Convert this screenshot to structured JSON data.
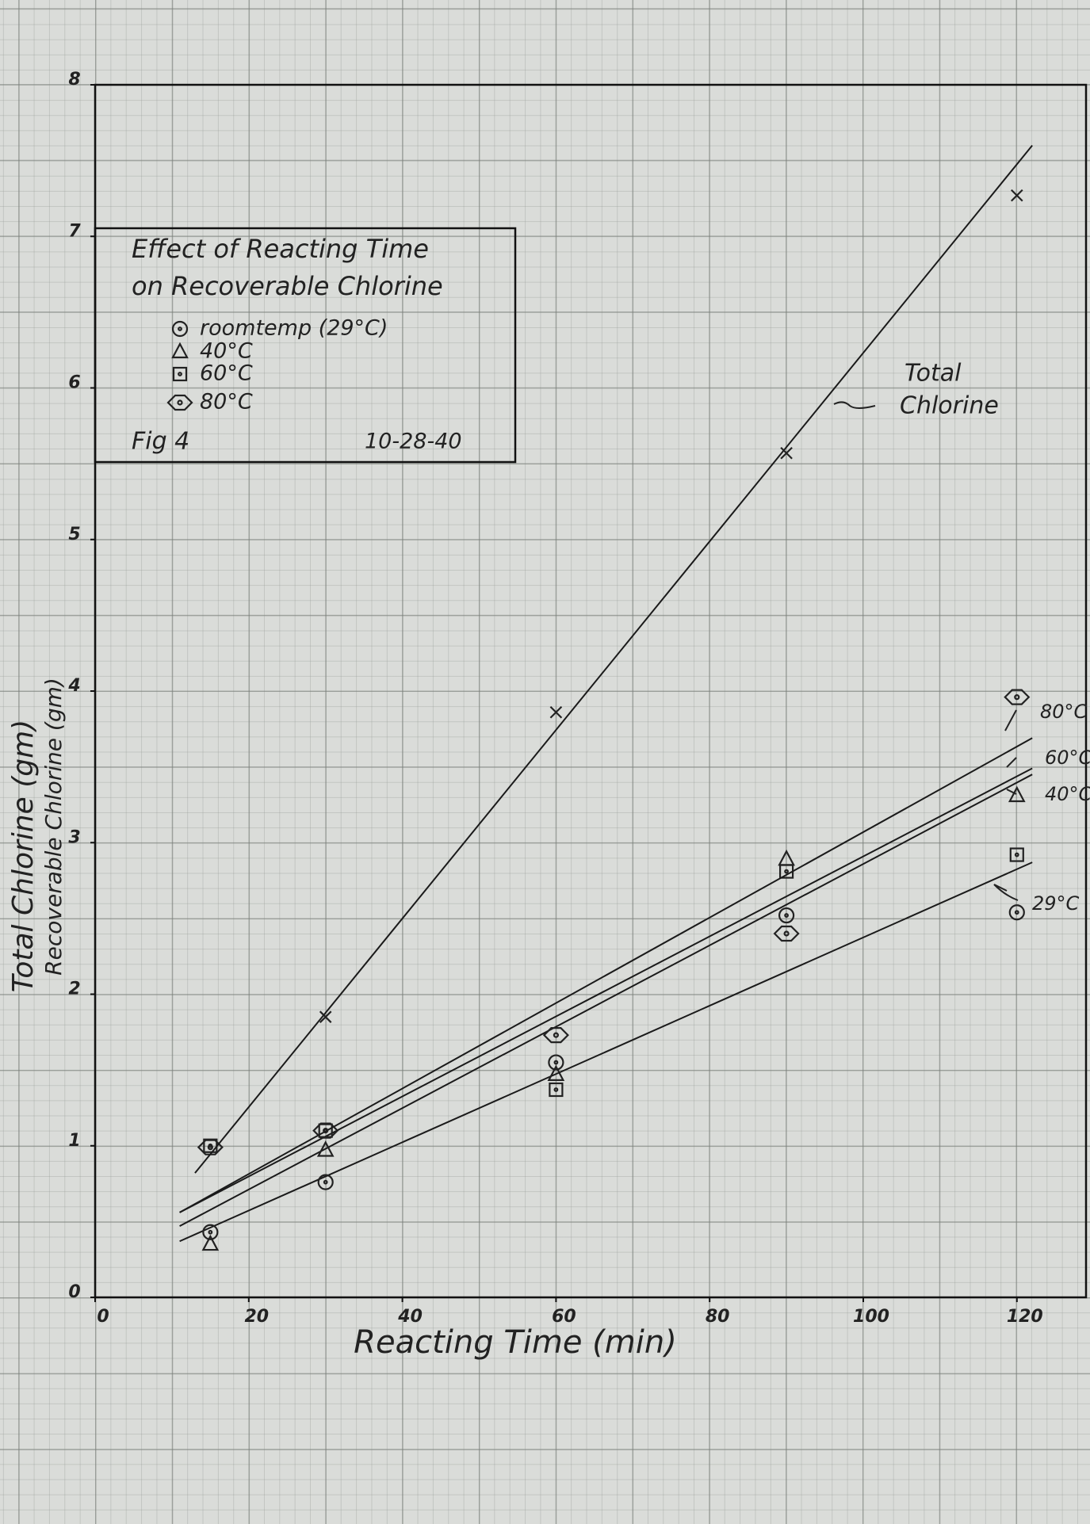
{
  "chart_data": {
    "type": "scatter",
    "title_lines": [
      "Effect of Reacting Time",
      "on Recoverable Chlorine"
    ],
    "figure_label": "Fig 4",
    "date": "10-28-40",
    "x_label": "Reacting Time (min)",
    "y_labels": [
      "Total Chlorine (gm)",
      "Recoverable Chlorine (gm)"
    ],
    "xlim": [
      0,
      129
    ],
    "ylim": [
      0,
      8
    ],
    "xticks": [
      0,
      20,
      40,
      60,
      80,
      100,
      120
    ],
    "yticks": [
      0,
      1,
      2,
      3,
      4,
      5,
      6,
      7,
      8
    ],
    "legend": "upper left",
    "series": [
      {
        "name": "roomtemp (29°C)",
        "marker": "circle",
        "x": [
          15,
          30,
          60,
          90,
          120
        ],
        "values": [
          0.43,
          0.76,
          1.55,
          2.52,
          2.54
        ],
        "fit": {
          "label": "29°C",
          "x": [
            11,
            122
          ],
          "values": [
            0.37,
            2.87
          ]
        }
      },
      {
        "name": "40°C",
        "marker": "triangle",
        "x": [
          15,
          30,
          60,
          90,
          120
        ],
        "values": [
          0.35,
          0.97,
          1.47,
          2.89,
          3.31
        ],
        "fit": {
          "label": "40°C",
          "x": [
            11,
            122
          ],
          "values": [
            0.47,
            3.45
          ]
        }
      },
      {
        "name": "60°C",
        "marker": "square",
        "x": [
          15,
          30,
          60,
          90,
          120
        ],
        "values": [
          1.0,
          1.1,
          1.37,
          2.81,
          2.92
        ],
        "fit": {
          "label": "60°C",
          "x": [
            11,
            122
          ],
          "values": [
            0.56,
            3.49
          ]
        }
      },
      {
        "name": "80°C",
        "marker": "diamond",
        "x": [
          15,
          30,
          60,
          90,
          120
        ],
        "values": [
          0.99,
          1.1,
          1.73,
          2.4,
          3.96
        ],
        "fit": {
          "label": "80°C",
          "x": [
            11,
            122
          ],
          "values": [
            0.56,
            3.69
          ]
        }
      }
    ],
    "total": {
      "label_lines": [
        "Total",
        "Chlorine"
      ],
      "marker": "x",
      "x": [
        30,
        60,
        90,
        120
      ],
      "values": [
        1.85,
        3.86,
        5.57,
        7.27
      ],
      "fit": {
        "x": [
          13,
          122
        ],
        "values": [
          0.82,
          7.6
        ]
      }
    }
  }
}
